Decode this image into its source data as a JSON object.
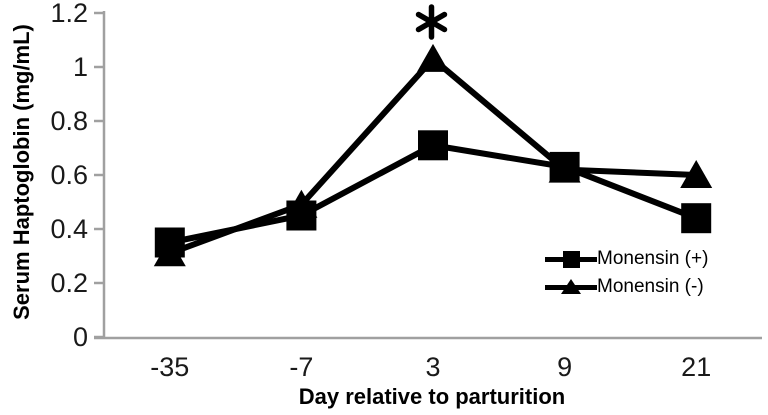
{
  "chart_data": {
    "type": "line",
    "title": "",
    "xlabel": "Day relative to parturition",
    "ylabel": "Serum Haptoglobin (mg/mL)",
    "categories": [
      "-35",
      "-7",
      "3",
      "9",
      "21"
    ],
    "x_values": [
      -35,
      -7,
      3,
      9,
      21
    ],
    "series": [
      {
        "name": "Monensin (+)",
        "marker": "square",
        "values": [
          0.35,
          0.45,
          0.71,
          0.63,
          0.44
        ]
      },
      {
        "name": "Monensin (-)",
        "marker": "triangle",
        "values": [
          0.31,
          0.49,
          1.03,
          0.62,
          0.6
        ]
      }
    ],
    "ylim": [
      0,
      1.2
    ],
    "yticks": [
      0,
      0.2,
      0.4,
      0.6,
      0.8,
      1,
      1.2
    ],
    "ytick_labels": [
      "0",
      "0.2",
      "0.4",
      "0.6",
      "0.8",
      "1",
      "1.2"
    ],
    "grid": false,
    "legend_position": "inside-right",
    "annotation": {
      "text": "*",
      "category": "3",
      "above_series": "Monensin (-)"
    },
    "colors": {
      "series": "#000000",
      "axis": "#a0a0a0",
      "text": "#1a1a1a"
    }
  }
}
